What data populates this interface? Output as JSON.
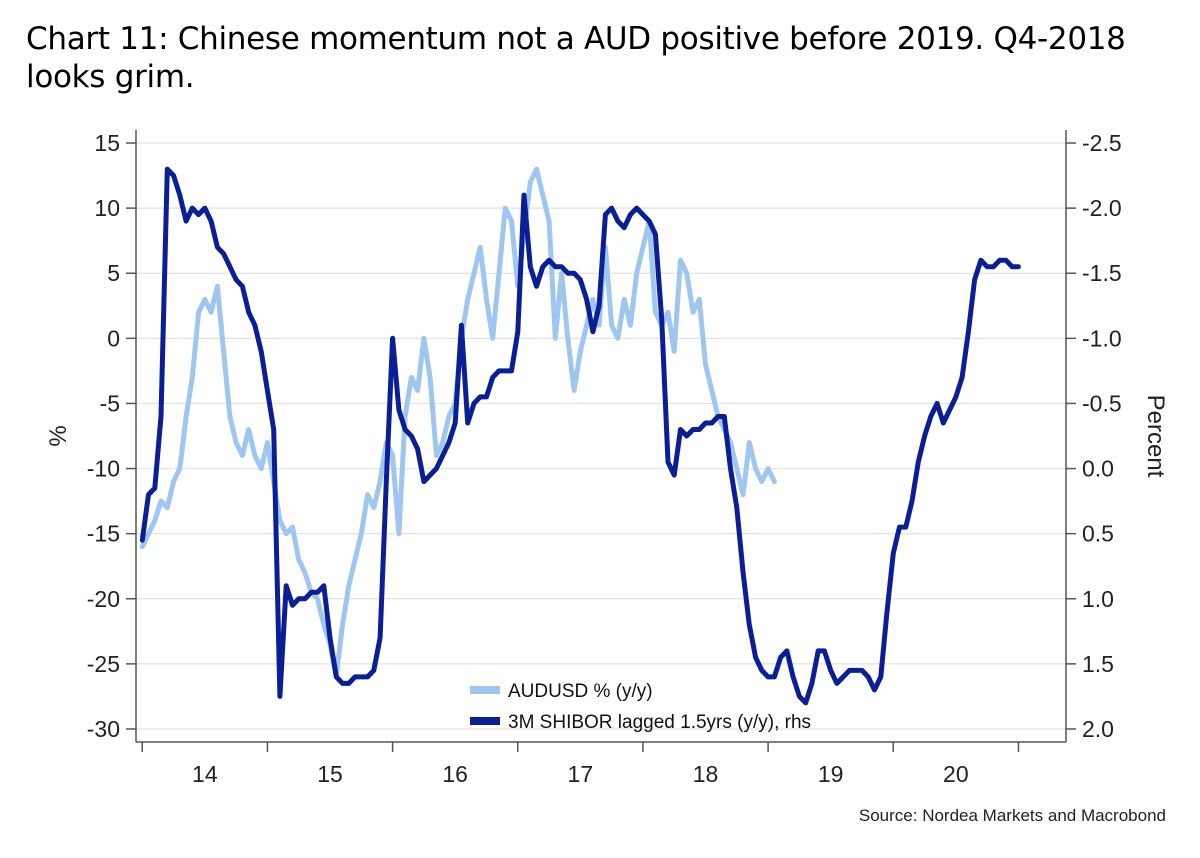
{
  "title": "Chart 11: Chinese momentum not a AUD positive before 2019. Q4-2018 looks grim.",
  "source": "Source: Nordea Markets and Macrobond",
  "colors": {
    "aud": "#9fc6f0",
    "shibor": "#0a1f96",
    "grid": "#e2e2e2",
    "axis": "#555555"
  },
  "chart_data": {
    "type": "line",
    "x_unit": "year",
    "xlim": [
      2013.45,
      2020.88
    ],
    "x_ticks": [
      {
        "label": "14",
        "value": 2014.0
      },
      {
        "label": "15",
        "value": 2015.0
      },
      {
        "label": "16",
        "value": 2016.0
      },
      {
        "label": "17",
        "value": 2017.0
      },
      {
        "label": "18",
        "value": 2018.0
      },
      {
        "label": "19",
        "value": 2019.0
      },
      {
        "label": "20",
        "value": 2020.0
      }
    ],
    "ylabel": "%",
    "ylim": [
      -31,
      16
    ],
    "y_ticks": [
      "15",
      "10",
      "5",
      "0",
      "-5",
      "-10",
      "-15",
      "-20",
      "-25",
      "-30"
    ],
    "y2label": "Percent",
    "y2lim": [
      2.1,
      -2.6
    ],
    "y2_inverted": true,
    "y2_ticks": [
      "-2.5",
      "-2.0",
      "-1.5",
      "-1.0",
      "-0.5",
      "0.0",
      "0.5",
      "1.0",
      "1.5",
      "2.0"
    ],
    "grid": true,
    "legend_position": "bottom-center",
    "series": [
      {
        "name": "AUDUSD % (y/y)",
        "axis": "left",
        "color": "#9fc6f0",
        "x": [
          2013.5,
          2013.55,
          2013.6,
          2013.65,
          2013.7,
          2013.75,
          2013.8,
          2013.85,
          2013.9,
          2013.95,
          2014.0,
          2014.05,
          2014.1,
          2014.15,
          2014.2,
          2014.25,
          2014.3,
          2014.35,
          2014.4,
          2014.45,
          2014.5,
          2014.55,
          2014.6,
          2014.65,
          2014.7,
          2014.75,
          2014.8,
          2014.85,
          2014.9,
          2014.95,
          2015.0,
          2015.05,
          2015.1,
          2015.15,
          2015.2,
          2015.25,
          2015.3,
          2015.35,
          2015.4,
          2015.45,
          2015.5,
          2015.55,
          2015.6,
          2015.65,
          2015.7,
          2015.75,
          2015.8,
          2015.85,
          2015.9,
          2015.95,
          2016.0,
          2016.05,
          2016.1,
          2016.15,
          2016.2,
          2016.25,
          2016.3,
          2016.35,
          2016.4,
          2016.45,
          2016.5,
          2016.55,
          2016.6,
          2016.65,
          2016.7,
          2016.75,
          2016.8,
          2016.85,
          2016.9,
          2016.95,
          2017.0,
          2017.05,
          2017.1,
          2017.15,
          2017.2,
          2017.25,
          2017.3,
          2017.35,
          2017.4,
          2017.45,
          2017.5,
          2017.55,
          2017.6,
          2017.65,
          2017.7,
          2017.75,
          2017.8,
          2017.85,
          2017.9,
          2017.95,
          2018.0,
          2018.05,
          2018.1,
          2018.15,
          2018.2,
          2018.25,
          2018.3,
          2018.35,
          2018.4,
          2018.45,
          2018.5,
          2018.55
        ],
        "values": [
          -16,
          -15,
          -14,
          -12.5,
          -13,
          -11,
          -10,
          -6,
          -3,
          2,
          3,
          2,
          4,
          -1,
          -6,
          -8,
          -9,
          -7,
          -9,
          -10,
          -8,
          -11,
          -14,
          -15,
          -14.5,
          -17,
          -18,
          -19.5,
          -20,
          -22,
          -23.5,
          -26,
          -22,
          -19,
          -17,
          -15,
          -12,
          -13,
          -11,
          -8,
          -9,
          -15,
          -6,
          -3,
          -4,
          0,
          -3,
          -9,
          -8,
          -6,
          -5,
          0,
          3,
          5,
          7,
          3,
          0,
          5,
          10,
          9,
          4,
          8,
          12,
          13,
          11,
          9,
          0,
          5,
          0,
          -4,
          -1,
          1,
          3,
          1,
          7,
          1,
          0,
          3,
          1,
          5,
          7,
          9,
          2,
          1,
          2,
          -1,
          6,
          5,
          2,
          3,
          -2,
          -4,
          -6,
          -7,
          -8,
          -10,
          -12,
          -8,
          -10,
          -11,
          -10,
          -11
        ]
      },
      {
        "name": "3M SHIBOR lagged 1.5yrs (y/y), rhs",
        "axis": "right",
        "color": "#0a1f96",
        "x": [
          2013.5,
          2013.55,
          2013.6,
          2013.65,
          2013.7,
          2013.75,
          2013.8,
          2013.85,
          2013.9,
          2013.95,
          2014.0,
          2014.05,
          2014.1,
          2014.15,
          2014.2,
          2014.25,
          2014.3,
          2014.35,
          2014.4,
          2014.45,
          2014.5,
          2014.55,
          2014.6,
          2014.65,
          2014.7,
          2014.75,
          2014.8,
          2014.85,
          2014.9,
          2014.95,
          2015.0,
          2015.05,
          2015.1,
          2015.15,
          2015.2,
          2015.25,
          2015.3,
          2015.35,
          2015.4,
          2015.45,
          2015.5,
          2015.55,
          2015.6,
          2015.65,
          2015.7,
          2015.75,
          2015.8,
          2015.85,
          2015.9,
          2015.95,
          2016.0,
          2016.05,
          2016.1,
          2016.15,
          2016.2,
          2016.25,
          2016.3,
          2016.35,
          2016.4,
          2016.45,
          2016.5,
          2016.55,
          2016.6,
          2016.65,
          2016.7,
          2016.75,
          2016.8,
          2016.85,
          2016.9,
          2016.95,
          2017.0,
          2017.05,
          2017.1,
          2017.15,
          2017.2,
          2017.25,
          2017.3,
          2017.35,
          2017.4,
          2017.45,
          2017.5,
          2017.55,
          2017.6,
          2017.65,
          2017.7,
          2017.75,
          2017.8,
          2017.85,
          2017.9,
          2017.95,
          2018.0,
          2018.05,
          2018.1,
          2018.15,
          2018.2,
          2018.25,
          2018.3,
          2018.35,
          2018.4,
          2018.45,
          2018.5,
          2018.55,
          2018.6,
          2018.65,
          2018.7,
          2018.75,
          2018.8,
          2018.85,
          2018.9,
          2018.95,
          2019.0,
          2019.05,
          2019.1,
          2019.15,
          2019.2,
          2019.25,
          2019.3,
          2019.35,
          2019.4,
          2019.45,
          2019.5,
          2019.55,
          2019.6,
          2019.65,
          2019.7,
          2019.75,
          2019.8,
          2019.85,
          2019.9,
          2019.95,
          2020.0,
          2020.05,
          2020.1,
          2020.15,
          2020.2,
          2020.25,
          2020.3,
          2020.35,
          2020.4,
          2020.45,
          2020.5
        ],
        "values": [
          0.55,
          0.2,
          0.15,
          -0.4,
          -2.3,
          -2.25,
          -2.1,
          -1.9,
          -2.0,
          -1.95,
          -2.0,
          -1.9,
          -1.7,
          -1.65,
          -1.55,
          -1.45,
          -1.4,
          -1.2,
          -1.1,
          -0.9,
          -0.6,
          -0.3,
          1.75,
          0.9,
          1.05,
          1.0,
          1.0,
          0.95,
          0.95,
          0.9,
          1.3,
          1.6,
          1.65,
          1.65,
          1.6,
          1.6,
          1.6,
          1.55,
          1.3,
          0.1,
          -1.0,
          -0.45,
          -0.3,
          -0.25,
          -0.15,
          0.1,
          0.05,
          0.0,
          -0.1,
          -0.2,
          -0.35,
          -1.1,
          -0.35,
          -0.5,
          -0.55,
          -0.55,
          -0.7,
          -0.75,
          -0.75,
          -0.75,
          -1.05,
          -2.1,
          -1.55,
          -1.4,
          -1.55,
          -1.6,
          -1.55,
          -1.55,
          -1.5,
          -1.5,
          -1.45,
          -1.3,
          -1.05,
          -1.25,
          -1.95,
          -2.0,
          -1.9,
          -1.85,
          -1.95,
          -2.0,
          -1.95,
          -1.9,
          -1.8,
          -1.15,
          -0.05,
          0.05,
          -0.3,
          -0.25,
          -0.3,
          -0.3,
          -0.35,
          -0.35,
          -0.4,
          -0.4,
          0.0,
          0.3,
          0.8,
          1.2,
          1.45,
          1.55,
          1.6,
          1.6,
          1.45,
          1.4,
          1.6,
          1.75,
          1.8,
          1.65,
          1.4,
          1.4,
          1.55,
          1.65,
          1.6,
          1.55,
          1.55,
          1.55,
          1.6,
          1.7,
          1.6,
          1.1,
          0.65,
          0.45,
          0.45,
          0.25,
          -0.05,
          -0.25,
          -0.4,
          -0.5,
          -0.35,
          -0.45,
          -0.55,
          -0.7,
          -1.05,
          -1.45,
          -1.6,
          -1.55,
          -1.55,
          -1.6,
          -1.6,
          -1.55,
          -1.55
        ]
      }
    ]
  }
}
